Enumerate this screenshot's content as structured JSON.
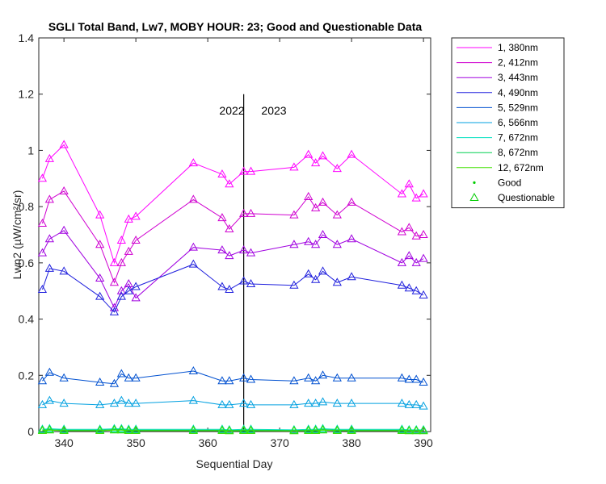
{
  "chart_data": {
    "type": "line",
    "title": "SGLI Total Band, Lw7, MOBY HOUR: 23;  Good and Questionable Data",
    "xlabel": "Sequential Day",
    "ylabel": "Lwn2 (µW/cm²/sr)",
    "xlim": [
      336.5,
      391
    ],
    "ylim": [
      0,
      1.4
    ],
    "xticks": [
      "340",
      "350",
      "360",
      "370",
      "380",
      "390"
    ],
    "yticks": [
      "0",
      "0.2",
      "0.4",
      "0.6",
      "0.8",
      "1",
      "1.2",
      "1.4"
    ],
    "grid": false,
    "legend_position": "outside-right",
    "annotations": [
      "2022",
      "2023"
    ],
    "year_divider_x": 365,
    "x": [
      337,
      338,
      340,
      345,
      347,
      348,
      349,
      350,
      358,
      362,
      363,
      365,
      366,
      372,
      374,
      375,
      376,
      378,
      380,
      387,
      388,
      389,
      390
    ],
    "series": [
      {
        "name": "1, 380nm",
        "color": "#ff00ff",
        "values": [
          0.9,
          0.97,
          1.02,
          0.77,
          0.6,
          0.68,
          0.755,
          0.765,
          0.955,
          0.915,
          0.88,
          0.925,
          0.925,
          0.94,
          0.985,
          0.955,
          0.98,
          0.935,
          0.985,
          0.845,
          0.88,
          0.83,
          0.845
        ]
      },
      {
        "name": "2, 412nm",
        "color": "#d000d0",
        "values": [
          0.74,
          0.825,
          0.855,
          0.665,
          0.53,
          0.6,
          0.64,
          0.68,
          0.825,
          0.76,
          0.72,
          0.775,
          0.775,
          0.77,
          0.835,
          0.795,
          0.815,
          0.77,
          0.815,
          0.71,
          0.725,
          0.695,
          0.7
        ]
      },
      {
        "name": "3, 443nm",
        "color": "#a000e0",
        "values": [
          0.635,
          0.685,
          0.715,
          0.545,
          0.44,
          0.5,
          0.525,
          0.475,
          0.655,
          0.645,
          0.625,
          0.645,
          0.635,
          0.665,
          0.675,
          0.665,
          0.7,
          0.665,
          0.685,
          0.6,
          0.625,
          0.6,
          0.615
        ]
      },
      {
        "name": "4, 490nm",
        "color": "#2020dd",
        "values": [
          0.505,
          0.58,
          0.57,
          0.48,
          0.425,
          0.48,
          0.5,
          0.515,
          0.595,
          0.515,
          0.505,
          0.535,
          0.525,
          0.52,
          0.56,
          0.54,
          0.57,
          0.53,
          0.55,
          0.52,
          0.51,
          0.5,
          0.485
        ]
      },
      {
        "name": "5, 529nm",
        "color": "#0050d0",
        "values": [
          0.18,
          0.21,
          0.19,
          0.175,
          0.17,
          0.205,
          0.19,
          0.19,
          0.215,
          0.18,
          0.18,
          0.19,
          0.185,
          0.18,
          0.19,
          0.18,
          0.2,
          0.19,
          0.19,
          0.19,
          0.185,
          0.185,
          0.175
        ]
      },
      {
        "name": "6, 566nm",
        "color": "#00a0e0",
        "values": [
          0.095,
          0.11,
          0.1,
          0.095,
          0.1,
          0.11,
          0.1,
          0.1,
          0.11,
          0.095,
          0.095,
          0.1,
          0.095,
          0.095,
          0.1,
          0.1,
          0.105,
          0.1,
          0.1,
          0.1,
          0.095,
          0.095,
          0.09
        ]
      },
      {
        "name": "7, 672nm",
        "color": "#00e0c0",
        "values": [
          0.008,
          0.01,
          0.008,
          0.008,
          0.01,
          0.01,
          0.008,
          0.008,
          0.008,
          0.008,
          0.006,
          0.008,
          0.008,
          0.006,
          0.008,
          0.008,
          0.01,
          0.008,
          0.008,
          0.008,
          0.006,
          0.006,
          0.006
        ]
      },
      {
        "name": "8, 672nm",
        "color": "#00d050",
        "values": [
          0.005,
          0.007,
          0.005,
          0.005,
          0.007,
          0.007,
          0.005,
          0.005,
          0.005,
          0.005,
          0.004,
          0.005,
          0.005,
          0.004,
          0.005,
          0.005,
          0.007,
          0.005,
          0.005,
          0.005,
          0.004,
          0.004,
          0.004
        ]
      },
      {
        "name": "12, 672nm",
        "color": "#40e000",
        "values": [
          0.003,
          0.005,
          0.003,
          0.003,
          0.005,
          0.005,
          0.003,
          0.003,
          0.003,
          0.003,
          0.002,
          0.003,
          0.003,
          0.002,
          0.003,
          0.003,
          0.005,
          0.003,
          0.003,
          0.003,
          0.002,
          0.002,
          0.002
        ]
      }
    ],
    "marker_legend": [
      {
        "name": "Good",
        "marker": "dot",
        "color": "#00cc00"
      },
      {
        "name": "Questionable",
        "marker": "triangle",
        "color": "#00cc00"
      }
    ]
  }
}
